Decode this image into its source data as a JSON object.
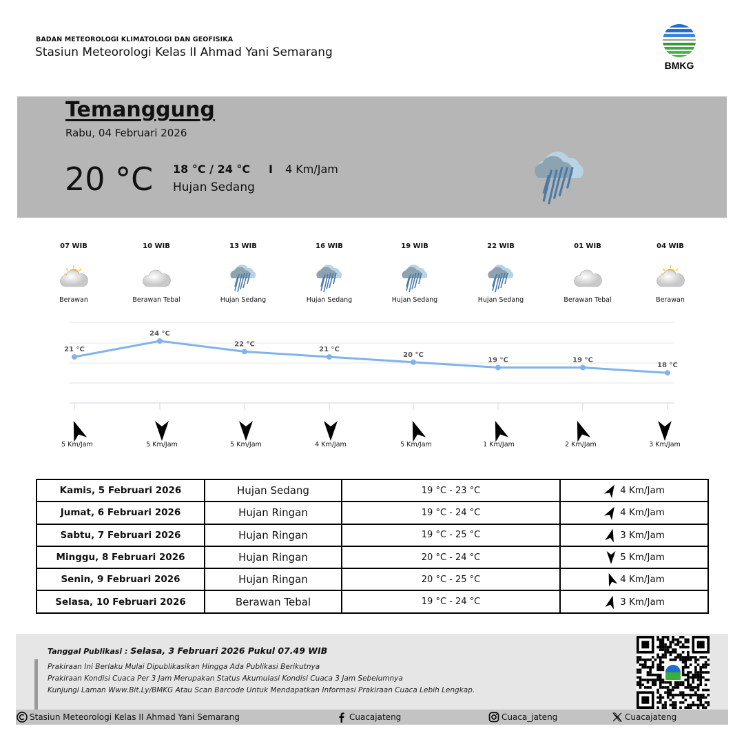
{
  "header": {
    "org": "BADAN METEOROLOGI KLIMATOLOGI DAN GEOFISIKA",
    "station": "Stasiun Meteorologi Kelas II Ahmad Yani Semarang",
    "logo_text": "BMKG"
  },
  "current": {
    "city": "Temanggung",
    "date": "Rabu, 04 Februari 2026",
    "temp": "20 °C",
    "range": "18 °C / 24 °C",
    "separator": "I",
    "wind": "4 Km/Jam",
    "condition": "Hujan Sedang",
    "icon": "rain-icon"
  },
  "hourly": [
    {
      "time": "07 WIB",
      "cond": "Berawan",
      "icon": "partly-cloudy-icon"
    },
    {
      "time": "10 WIB",
      "cond": "Berawan Tebal",
      "icon": "cloud-icon"
    },
    {
      "time": "13 WIB",
      "cond": "Hujan Sedang",
      "icon": "rain-icon"
    },
    {
      "time": "16 WIB",
      "cond": "Hujan Sedang",
      "icon": "rain-icon"
    },
    {
      "time": "19 WIB",
      "cond": "Hujan Sedang",
      "icon": "rain-icon"
    },
    {
      "time": "22 WIB",
      "cond": "Hujan Sedang",
      "icon": "rain-icon"
    },
    {
      "time": "01 WIB",
      "cond": "Berawan Tebal",
      "icon": "cloud-icon"
    },
    {
      "time": "04 WIB",
      "cond": "Berawan",
      "icon": "partly-cloudy-icon"
    }
  ],
  "chart_data": {
    "type": "line",
    "categories": [
      "07 WIB",
      "10 WIB",
      "13 WIB",
      "16 WIB",
      "19 WIB",
      "22 WIB",
      "01 WIB",
      "04 WIB"
    ],
    "values": [
      21,
      24,
      22,
      21,
      20,
      19,
      19,
      18
    ],
    "labels": [
      "21 °C",
      "24 °C",
      "22 °C",
      "21 °C",
      "20 °C",
      "19 °C",
      "19 °C",
      "18 °C"
    ],
    "grid": true,
    "color": "#7fb3ea"
  },
  "wind": [
    {
      "speed": "5 Km/Jam",
      "direction_deg": 340
    },
    {
      "speed": "5 Km/Jam",
      "direction_deg": 180
    },
    {
      "speed": "5 Km/Jam",
      "direction_deg": 180
    },
    {
      "speed": "4 Km/Jam",
      "direction_deg": 180
    },
    {
      "speed": "5 Km/Jam",
      "direction_deg": 340
    },
    {
      "speed": "1 Km/Jam",
      "direction_deg": 340
    },
    {
      "speed": "2 Km/Jam",
      "direction_deg": 340
    },
    {
      "speed": "3 Km/Jam",
      "direction_deg": 180
    }
  ],
  "daily": [
    {
      "date": "Kamis, 5 Februari 2026",
      "cond": "Hujan Sedang",
      "range": "19 °C - 23 °C",
      "wind": "4 Km/Jam",
      "direction_deg": 30
    },
    {
      "date": "Jumat, 6 Februari 2026",
      "cond": "Hujan Ringan",
      "range": "19 °C - 24 °C",
      "wind": "4 Km/Jam",
      "direction_deg": 30
    },
    {
      "date": "Sabtu, 7 Februari 2026",
      "cond": "Hujan Ringan",
      "range": "19 °C - 25 °C",
      "wind": "3 Km/Jam",
      "direction_deg": 15
    },
    {
      "date": "Minggu, 8 Februari 2026",
      "cond": "Hujan Ringan",
      "range": "20 °C - 24 °C",
      "wind": "5 Km/Jam",
      "direction_deg": 180
    },
    {
      "date": "Senin, 9 Februari 2026",
      "cond": "Hujan Ringan",
      "range": "20 °C - 25 °C",
      "wind": "4 Km/Jam",
      "direction_deg": 340
    },
    {
      "date": "Selasa, 10 Februari 2026",
      "cond": "Berawan Tebal",
      "range": "19 °C - 24 °C",
      "wind": "3 Km/Jam",
      "direction_deg": 15
    }
  ],
  "footer": {
    "pub_label": "Tanggal Publikasi : ",
    "pub_value": "Selasa, 3 Februari 2026 Pukul 07.49 WIB",
    "notes": [
      "Prakiraan Ini Berlaku Mulai Dipublikasikan Hingga Ada Publikasi Berikutnya",
      "Prakiraan Kondisi Cuaca Per 3 Jam Merupakan Status Akumulasi Kondisi Cuaca 3 Jam Sebelumnya",
      "Kunjungi Laman Www.Bit.Ly/BMKG Atau Scan Barcode Untuk Mendapatkan Informasi Prakiraan Cuaca Lebih Lengkap."
    ],
    "copyright": "Stasiun Meteorologi Kelas II Ahmad Yani Semarang",
    "facebook": "Cuacajateng",
    "instagram": "Cuaca_jateng",
    "x": "Cuacajateng"
  }
}
